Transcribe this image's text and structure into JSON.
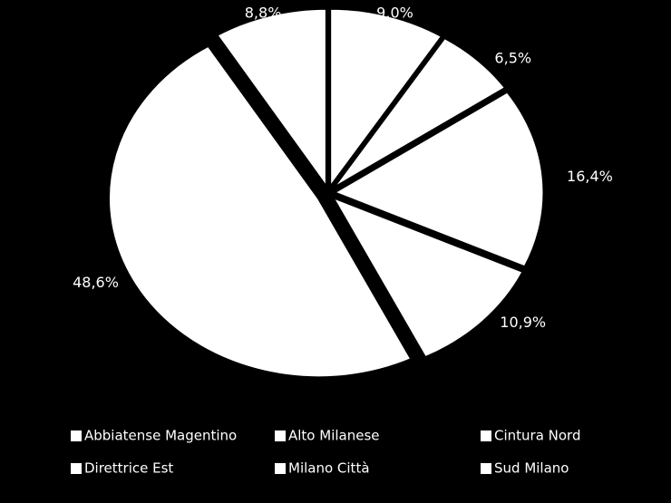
{
  "chart_data": {
    "type": "pie",
    "categories": [
      "Abbiatense Magentino",
      "Alto Milanese",
      "Cintura Nord",
      "Direttrice Est",
      "Milano Città",
      "Sud Milano"
    ],
    "values": [
      9.0,
      6.5,
      16.4,
      10.9,
      48.6,
      8.8
    ],
    "value_labels": [
      "9,0%",
      "6,5%",
      "16,4%",
      "10,9%",
      "48,6%",
      "8,8%"
    ],
    "colors": [
      "#ffffff",
      "#ffffff",
      "#ffffff",
      "#ffffff",
      "#ffffff",
      "#ffffff"
    ],
    "legend": "bottom"
  }
}
